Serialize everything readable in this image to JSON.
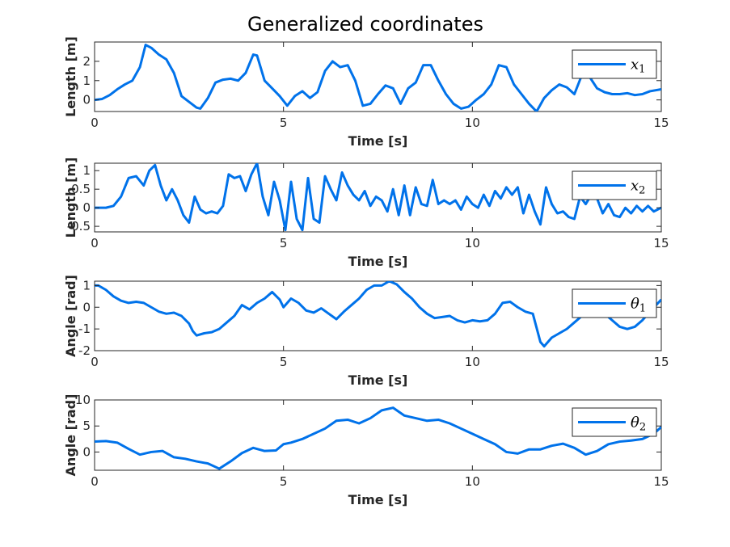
{
  "figure": {
    "title": "Generalized coordinates"
  },
  "colors": {
    "line": "#0072EA",
    "axis": "#262626",
    "background": "#ffffff"
  },
  "chart_data": [
    {
      "type": "line",
      "xlabel": "Time [s]",
      "ylabel": "Length [m]",
      "xlim": [
        0,
        15
      ],
      "ylim": [
        -0.6,
        3.0
      ],
      "xticks": [
        0,
        5,
        10,
        15
      ],
      "yticks": [
        0,
        1,
        2
      ],
      "grid": false,
      "legend": {
        "position": "top-right",
        "label": "x",
        "subscript": "1"
      },
      "series": [
        {
          "name": "x1",
          "x": [
            0,
            0.2,
            0.4,
            0.6,
            0.8,
            1.0,
            1.2,
            1.35,
            1.5,
            1.7,
            1.9,
            2.1,
            2.3,
            2.5,
            2.7,
            2.8,
            3.0,
            3.2,
            3.4,
            3.6,
            3.8,
            4.0,
            4.2,
            4.3,
            4.5,
            4.7,
            4.9,
            5.1,
            5.3,
            5.5,
            5.7,
            5.9,
            6.1,
            6.3,
            6.5,
            6.7,
            6.9,
            7.1,
            7.3,
            7.5,
            7.7,
            7.9,
            8.1,
            8.3,
            8.5,
            8.7,
            8.9,
            9.1,
            9.3,
            9.5,
            9.7,
            9.9,
            10.1,
            10.3,
            10.5,
            10.7,
            10.9,
            11.1,
            11.3,
            11.5,
            11.7,
            11.9,
            12.1,
            12.3,
            12.5,
            12.7,
            12.9,
            13.1,
            13.3,
            13.5,
            13.7,
            13.9,
            14.1,
            14.3,
            14.5,
            14.7,
            15.0
          ],
          "values": [
            0,
            0.05,
            0.25,
            0.55,
            0.8,
            1.0,
            1.7,
            2.85,
            2.7,
            2.35,
            2.1,
            1.4,
            0.2,
            -0.1,
            -0.4,
            -0.45,
            0.1,
            0.9,
            1.05,
            1.1,
            1.0,
            1.4,
            2.35,
            2.3,
            1.0,
            0.6,
            0.2,
            -0.3,
            0.2,
            0.45,
            0.1,
            0.4,
            1.5,
            2.0,
            1.7,
            1.8,
            1.0,
            -0.3,
            -0.2,
            0.3,
            0.75,
            0.6,
            -0.2,
            0.6,
            0.9,
            1.8,
            1.8,
            1.0,
            0.3,
            -0.2,
            -0.45,
            -0.35,
            0.0,
            0.3,
            0.8,
            1.8,
            1.7,
            0.8,
            0.3,
            -0.2,
            -0.6,
            0.1,
            0.5,
            0.8,
            0.65,
            0.3,
            1.3,
            1.2,
            0.6,
            0.4,
            0.3,
            0.3,
            0.35,
            0.25,
            0.3,
            0.45,
            0.55
          ]
        }
      ]
    },
    {
      "type": "line",
      "xlabel": "Time [s]",
      "ylabel": "Length [m]",
      "xlim": [
        0,
        15
      ],
      "ylim": [
        -0.65,
        1.2
      ],
      "xticks": [
        0,
        5,
        10,
        15
      ],
      "yticks": [
        -0.5,
        0,
        0.5,
        1
      ],
      "yticklabels": [
        "-0.5",
        "0",
        "0.5",
        "1"
      ],
      "grid": false,
      "legend": {
        "position": "top-right",
        "label": "x",
        "subscript": "2"
      },
      "series": [
        {
          "name": "x2",
          "x": [
            0,
            0.3,
            0.5,
            0.7,
            0.9,
            1.1,
            1.3,
            1.45,
            1.6,
            1.75,
            1.9,
            2.05,
            2.2,
            2.35,
            2.5,
            2.65,
            2.8,
            2.95,
            3.1,
            3.25,
            3.4,
            3.55,
            3.7,
            3.85,
            4.0,
            4.15,
            4.3,
            4.45,
            4.6,
            4.75,
            4.9,
            5.05,
            5.2,
            5.35,
            5.5,
            5.65,
            5.8,
            5.95,
            6.1,
            6.25,
            6.4,
            6.55,
            6.7,
            6.85,
            7.0,
            7.15,
            7.3,
            7.45,
            7.6,
            7.75,
            7.9,
            8.05,
            8.2,
            8.35,
            8.5,
            8.65,
            8.8,
            8.95,
            9.1,
            9.25,
            9.4,
            9.55,
            9.7,
            9.85,
            10.0,
            10.15,
            10.3,
            10.45,
            10.6,
            10.75,
            10.9,
            11.05,
            11.2,
            11.35,
            11.5,
            11.65,
            11.8,
            11.95,
            12.1,
            12.25,
            12.4,
            12.55,
            12.7,
            12.85,
            13.0,
            13.15,
            13.3,
            13.45,
            13.6,
            13.75,
            13.9,
            14.05,
            14.2,
            14.35,
            14.5,
            14.65,
            14.8,
            15.0
          ],
          "values": [
            0,
            0,
            0.05,
            0.3,
            0.8,
            0.85,
            0.6,
            1.0,
            1.15,
            0.6,
            0.2,
            0.5,
            0.2,
            -0.2,
            -0.4,
            0.3,
            -0.05,
            -0.15,
            -0.1,
            -0.15,
            0.05,
            0.9,
            0.8,
            0.85,
            0.45,
            0.9,
            1.2,
            0.3,
            -0.2,
            0.7,
            0.2,
            -0.6,
            0.7,
            -0.3,
            -0.6,
            0.8,
            -0.3,
            -0.4,
            0.85,
            0.5,
            0.2,
            0.95,
            0.6,
            0.35,
            0.2,
            0.45,
            0.05,
            0.3,
            0.2,
            -0.1,
            0.5,
            -0.2,
            0.6,
            -0.2,
            0.55,
            0.1,
            0.05,
            0.75,
            0.1,
            0.2,
            0.1,
            0.2,
            -0.05,
            0.3,
            0.1,
            0.0,
            0.35,
            0.05,
            0.45,
            0.25,
            0.55,
            0.35,
            0.55,
            -0.15,
            0.35,
            -0.1,
            -0.45,
            0.55,
            0.1,
            -0.15,
            -0.1,
            -0.25,
            -0.3,
            0.3,
            0.1,
            0.35,
            0.25,
            -0.15,
            0.1,
            -0.2,
            -0.25,
            0.0,
            -0.15,
            0.05,
            -0.1,
            0.05,
            -0.1,
            0.0
          ]
        }
      ]
    },
    {
      "type": "line",
      "xlabel": "Time [s]",
      "ylabel": "Angle [rad]",
      "xlim": [
        0,
        15
      ],
      "ylim": [
        -2,
        1.2
      ],
      "xticks": [
        0,
        5,
        10,
        15
      ],
      "yticks": [
        -2,
        -1,
        0,
        1
      ],
      "yticklabels": [
        "-2",
        "-1",
        "0",
        "1"
      ],
      "grid": false,
      "legend": {
        "position": "top-right",
        "label": "θ",
        "subscript": "1"
      },
      "series": [
        {
          "name": "theta1",
          "x": [
            0,
            0.1,
            0.3,
            0.5,
            0.7,
            0.9,
            1.1,
            1.3,
            1.5,
            1.7,
            1.9,
            2.1,
            2.3,
            2.5,
            2.6,
            2.7,
            2.9,
            3.1,
            3.3,
            3.5,
            3.7,
            3.9,
            4.1,
            4.3,
            4.5,
            4.7,
            4.9,
            5.0,
            5.2,
            5.4,
            5.6,
            5.8,
            6.0,
            6.2,
            6.4,
            6.6,
            6.8,
            7.0,
            7.2,
            7.4,
            7.6,
            7.8,
            8.0,
            8.2,
            8.4,
            8.6,
            8.8,
            9.0,
            9.2,
            9.4,
            9.6,
            9.8,
            10.0,
            10.2,
            10.4,
            10.6,
            10.8,
            11.0,
            11.2,
            11.4,
            11.6,
            11.8,
            11.9,
            12.1,
            12.3,
            12.5,
            12.7,
            12.9,
            13.1,
            13.3,
            13.5,
            13.7,
            13.9,
            14.1,
            14.3,
            14.5,
            14.7,
            15.0
          ],
          "values": [
            1.0,
            1.0,
            0.8,
            0.5,
            0.3,
            0.2,
            0.25,
            0.2,
            0.0,
            -0.2,
            -0.3,
            -0.25,
            -0.4,
            -0.75,
            -1.1,
            -1.3,
            -1.2,
            -1.15,
            -1.0,
            -0.7,
            -0.4,
            0.1,
            -0.1,
            0.2,
            0.4,
            0.7,
            0.35,
            0.0,
            0.4,
            0.2,
            -0.15,
            -0.25,
            -0.05,
            -0.3,
            -0.55,
            -0.2,
            0.1,
            0.4,
            0.8,
            1.0,
            1.0,
            1.2,
            1.05,
            0.7,
            0.4,
            0.0,
            -0.3,
            -0.5,
            -0.45,
            -0.4,
            -0.6,
            -0.7,
            -0.6,
            -0.65,
            -0.6,
            -0.3,
            0.2,
            0.25,
            0.0,
            -0.2,
            -0.3,
            -1.6,
            -1.8,
            -1.4,
            -1.2,
            -1.0,
            -0.7,
            -0.4,
            -0.05,
            0.0,
            -0.3,
            -0.6,
            -0.9,
            -1.0,
            -0.9,
            -0.6,
            -0.2,
            0.35
          ]
        }
      ]
    },
    {
      "type": "line",
      "xlabel": "Time [s]",
      "ylabel": "Angle [rad]",
      "xlim": [
        0,
        15
      ],
      "ylim": [
        -3.5,
        10
      ],
      "xticks": [
        0,
        5,
        10,
        15
      ],
      "yticks": [
        0,
        5,
        10
      ],
      "grid": false,
      "legend": {
        "position": "top-right",
        "label": "θ",
        "subscript": "2"
      },
      "series": [
        {
          "name": "theta2",
          "x": [
            0,
            0.3,
            0.6,
            0.9,
            1.2,
            1.5,
            1.8,
            2.1,
            2.4,
            2.7,
            3.0,
            3.3,
            3.6,
            3.9,
            4.2,
            4.5,
            4.8,
            5.0,
            5.2,
            5.5,
            5.8,
            6.1,
            6.4,
            6.7,
            7.0,
            7.3,
            7.6,
            7.9,
            8.2,
            8.5,
            8.8,
            9.1,
            9.4,
            9.7,
            10.0,
            10.3,
            10.6,
            10.9,
            11.2,
            11.5,
            11.8,
            12.1,
            12.4,
            12.7,
            13.0,
            13.3,
            13.6,
            13.9,
            14.2,
            14.5,
            14.8,
            15.0
          ],
          "values": [
            2.0,
            2.1,
            1.8,
            0.6,
            -0.5,
            0.0,
            0.2,
            -1.0,
            -1.3,
            -1.8,
            -2.2,
            -3.2,
            -1.8,
            -0.2,
            0.8,
            0.2,
            0.3,
            1.5,
            1.8,
            2.5,
            3.5,
            4.5,
            6.0,
            6.2,
            5.5,
            6.5,
            8.0,
            8.5,
            7.0,
            6.5,
            6.0,
            6.2,
            5.5,
            4.5,
            3.5,
            2.5,
            1.5,
            0.0,
            -0.3,
            0.5,
            0.5,
            1.2,
            1.6,
            0.8,
            -0.5,
            0.2,
            1.5,
            2.0,
            2.2,
            2.5,
            3.5,
            4.8
          ]
        }
      ]
    }
  ]
}
